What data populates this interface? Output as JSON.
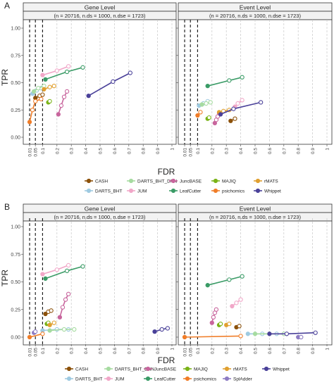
{
  "panel_labels": [
    "A",
    "B"
  ],
  "colors": {
    "CASH": "#8c510a",
    "DARTS_BHT": "#9ecae1",
    "DARTS_BHT_DNN": "#a6dba0",
    "JUM": "#f1a7c8",
    "JuncBASE": "#c8659d",
    "LeafCutter": "#3a9b66",
    "MAJIQ": "#7ab317",
    "psichomics": "#f07d28",
    "rMATS": "#e0a030",
    "SplAdder": "#8e7cc3",
    "Whippet": "#4a4199"
  },
  "chart_data": [
    {
      "type": "line",
      "panel": "A",
      "facets": [
        {
          "title": "Gene Level",
          "subtitle": "(n = 20716, n.ds = 1000, n.dse = 1723)"
        },
        {
          "title": "Event Level",
          "subtitle": "(n = 20716, n.ds = 1000, n.dse = 1723)"
        }
      ],
      "xlabel": "FDR",
      "ylabel": "TPR",
      "xlim": [
        0,
        1
      ],
      "ylim": [
        0,
        1
      ],
      "x_ticks": [
        "0.01",
        "0.05",
        "0.1",
        "0.2",
        "0.3",
        "0.4",
        "0.5",
        "0.6",
        "0.7",
        "0.8",
        "0.9",
        "1"
      ],
      "y_ticks": [
        "0.00",
        "0.25",
        "0.50",
        "0.75",
        "1.00"
      ],
      "fdr_thresholds": [
        0.01,
        0.05,
        0.1
      ],
      "legend_rows": [
        [
          "CASH",
          "DARTS_BHT_DNN",
          "JuncBASE",
          "MAJIQ",
          "rMATS"
        ],
        [
          "DARTS_BHT",
          "JUM",
          "LeafCutter",
          "psichomics",
          "Whippet"
        ]
      ],
      "series": [
        {
          "name": "CASH",
          "facet": 0,
          "x": [
            0.05,
            0.08,
            0.1
          ],
          "y": [
            0.36,
            0.38,
            0.39
          ]
        },
        {
          "name": "DARTS_BHT",
          "facet": 0,
          "x": [
            0.03,
            0.06,
            0.09
          ],
          "y": [
            0.4,
            0.43,
            0.45
          ]
        },
        {
          "name": "DARTS_BHT_DNN",
          "facet": 0,
          "x": [
            0.04,
            0.07,
            0.11
          ],
          "y": [
            0.42,
            0.45,
            0.47
          ]
        },
        {
          "name": "JUM",
          "facet": 0,
          "x": [
            0.1,
            0.2,
            0.28
          ],
          "y": [
            0.57,
            0.61,
            0.65
          ]
        },
        {
          "name": "JuncBASE",
          "facet": 0,
          "x": [
            0.21,
            0.23,
            0.25,
            0.27
          ],
          "y": [
            0.21,
            0.29,
            0.37,
            0.42
          ]
        },
        {
          "name": "LeafCutter",
          "facet": 0,
          "x": [
            0.12,
            0.27,
            0.38
          ],
          "y": [
            0.53,
            0.6,
            0.64
          ]
        },
        {
          "name": "MAJIQ",
          "facet": 0,
          "x": [
            0.14,
            0.15
          ],
          "y": [
            0.32,
            0.33
          ]
        },
        {
          "name": "psichomics",
          "facet": 0,
          "x": [
            0.01,
            0.03,
            0.05,
            0.09
          ],
          "y": [
            0.14,
            0.25,
            0.33,
            0.35
          ]
        },
        {
          "name": "rMATS",
          "facet": 0,
          "x": [
            0.11,
            0.15,
            0.18
          ],
          "y": [
            0.44,
            0.46,
            0.47
          ]
        },
        {
          "name": "Whippet",
          "facet": 0,
          "x": [
            0.42,
            0.59,
            0.71
          ],
          "y": [
            0.38,
            0.51,
            0.59
          ]
        },
        {
          "name": "CASH",
          "facet": 1,
          "x": [
            0.33,
            0.36
          ],
          "y": [
            0.15,
            0.17
          ]
        },
        {
          "name": "DARTS_BHT",
          "facet": 1,
          "x": [
            0.11,
            0.14,
            0.17
          ],
          "y": [
            0.29,
            0.31,
            0.33
          ]
        },
        {
          "name": "DARTS_BHT_DNN",
          "facet": 1,
          "x": [
            0.13,
            0.16,
            0.19
          ],
          "y": [
            0.3,
            0.31,
            0.32
          ]
        },
        {
          "name": "JUM",
          "facet": 1,
          "x": [
            0.36,
            0.38,
            0.41
          ],
          "y": [
            0.28,
            0.31,
            0.34
          ]
        },
        {
          "name": "JuncBASE",
          "facet": 1,
          "x": [
            0.22,
            0.23,
            0.24,
            0.25
          ],
          "y": [
            0.13,
            0.16,
            0.19,
            0.22
          ]
        },
        {
          "name": "LeafCutter",
          "facet": 1,
          "x": [
            0.17,
            0.32,
            0.41
          ],
          "y": [
            0.47,
            0.52,
            0.55
          ]
        },
        {
          "name": "MAJIQ",
          "facet": 1,
          "x": [
            0.17,
            0.18
          ],
          "y": [
            0.17,
            0.18
          ]
        },
        {
          "name": "psichomics",
          "facet": 1,
          "x": [
            0.1,
            0.12
          ],
          "y": [
            0.2,
            0.23
          ]
        },
        {
          "name": "rMATS",
          "facet": 1,
          "x": [
            0.25,
            0.28,
            0.32
          ],
          "y": [
            0.23,
            0.24,
            0.25
          ]
        },
        {
          "name": "Whippet",
          "facet": 1,
          "x": [
            0.26,
            0.35,
            0.54
          ],
          "y": [
            0.21,
            0.26,
            0.32
          ]
        }
      ]
    },
    {
      "type": "line",
      "panel": "B",
      "facets": [
        {
          "title": "Gene Level",
          "subtitle": "(n = 20716, n.ds = 1000, n.dse = 1723)"
        },
        {
          "title": "Event Level",
          "subtitle": "(n = 20716, n.ds = 1000, n.dse = 1723)"
        }
      ],
      "xlabel": "FDR",
      "ylabel": "TPR",
      "xlim": [
        0,
        1
      ],
      "ylim": [
        0,
        1
      ],
      "x_ticks": [
        "0.01",
        "0.05",
        "0.1",
        "0.2",
        "0.3",
        "0.4",
        "0.5",
        "0.6",
        "0.7",
        "0.8",
        "0.9",
        "1"
      ],
      "y_ticks": [
        "0.00",
        "0.25",
        "0.50",
        "0.75",
        "1.00"
      ],
      "fdr_thresholds": [
        0.01,
        0.05,
        0.1
      ],
      "legend_rows": [
        [
          "CASH",
          "DARTS_BHT_DNN",
          "JuncBASE",
          "MAJIQ",
          "rMATS",
          "Whippet"
        ],
        [
          "DARTS_BHT",
          "JUM",
          "LeafCutter",
          "psichomics",
          "SplAdder"
        ]
      ],
      "series": [
        {
          "name": "CASH",
          "facet": 0,
          "x": [
            0.12,
            0.14,
            0.16
          ],
          "y": [
            0.21,
            0.23,
            0.24
          ]
        },
        {
          "name": "DARTS_BHT",
          "facet": 0,
          "x": [
            0.1,
            0.2,
            0.28
          ],
          "y": [
            0.06,
            0.07,
            0.07
          ]
        },
        {
          "name": "DARTS_BHT_DNN",
          "facet": 0,
          "x": [
            0.15,
            0.25,
            0.32
          ],
          "y": [
            0.06,
            0.07,
            0.07
          ]
        },
        {
          "name": "JUM",
          "facet": 0,
          "x": [
            0.1,
            0.2,
            0.28
          ],
          "y": [
            0.57,
            0.61,
            0.65
          ]
        },
        {
          "name": "JuncBASE",
          "facet": 0,
          "x": [
            0.22,
            0.24,
            0.26,
            0.28
          ],
          "y": [
            0.18,
            0.27,
            0.34,
            0.39
          ]
        },
        {
          "name": "LeafCutter",
          "facet": 0,
          "x": [
            0.12,
            0.27,
            0.38
          ],
          "y": [
            0.53,
            0.6,
            0.64
          ]
        },
        {
          "name": "MAJIQ",
          "facet": 0,
          "x": [
            0.13,
            0.14
          ],
          "y": [
            0.12,
            0.13
          ]
        },
        {
          "name": "psichomics",
          "facet": 0,
          "x": [
            0.01,
            0.1
          ],
          "y": [
            0.0,
            0.03
          ]
        },
        {
          "name": "rMATS",
          "facet": 0,
          "x": [
            0.15,
            0.18
          ],
          "y": [
            0.11,
            0.13
          ]
        },
        {
          "name": "SplAdder",
          "facet": 0,
          "x": [
            0.04,
            0.05
          ],
          "y": [
            0.04,
            0.05
          ]
        },
        {
          "name": "Whippet",
          "facet": 0,
          "x": [
            0.88,
            0.93,
            0.97
          ],
          "y": [
            0.05,
            0.07,
            0.08
          ]
        },
        {
          "name": "CASH",
          "facet": 1,
          "x": [
            0.37,
            0.39
          ],
          "y": [
            0.09,
            0.1
          ]
        },
        {
          "name": "DARTS_BHT",
          "facet": 1,
          "x": [
            0.45,
            0.55,
            0.65
          ],
          "y": [
            0.03,
            0.03,
            0.03
          ]
        },
        {
          "name": "DARTS_BHT_DNN",
          "facet": 1,
          "x": [
            0.5,
            0.6,
            0.7
          ],
          "y": [
            0.03,
            0.03,
            0.03
          ]
        },
        {
          "name": "JUM",
          "facet": 1,
          "x": [
            0.34,
            0.37,
            0.4
          ],
          "y": [
            0.28,
            0.31,
            0.34
          ]
        },
        {
          "name": "JuncBASE",
          "facet": 1,
          "x": [
            0.2,
            0.21,
            0.22,
            0.23
          ],
          "y": [
            0.13,
            0.18,
            0.22,
            0.25
          ]
        },
        {
          "name": "LeafCutter",
          "facet": 1,
          "x": [
            0.17,
            0.32,
            0.41
          ],
          "y": [
            0.47,
            0.52,
            0.55
          ]
        },
        {
          "name": "MAJIQ",
          "facet": 1,
          "x": [
            0.25,
            0.26
          ],
          "y": [
            0.11,
            0.12
          ]
        },
        {
          "name": "psichomics",
          "facet": 1,
          "x": [
            0.01,
            0.4
          ],
          "y": [
            0.0,
            0.01
          ]
        },
        {
          "name": "rMATS",
          "facet": 1,
          "x": [
            0.3,
            0.32
          ],
          "y": [
            0.11,
            0.12
          ]
        },
        {
          "name": "SplAdder",
          "facet": 1,
          "x": [
            0.8,
            0.82
          ],
          "y": [
            0.0,
            0.0
          ]
        },
        {
          "name": "Whippet",
          "facet": 1,
          "x": [
            0.6,
            0.72,
            0.92
          ],
          "y": [
            0.03,
            0.03,
            0.04
          ]
        }
      ]
    }
  ]
}
